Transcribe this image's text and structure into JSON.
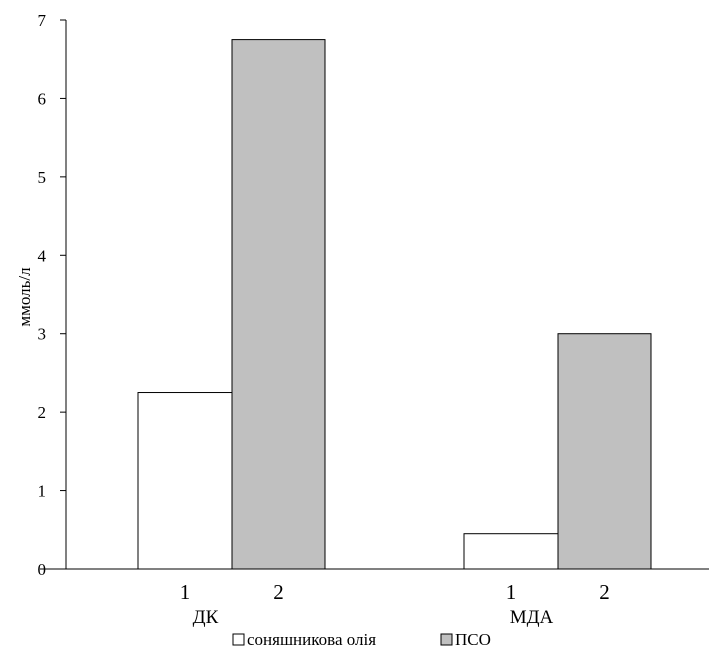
{
  "chart_data": {
    "type": "bar",
    "title": "",
    "xlabel": "",
    "ylabel": "ммоль/л",
    "ylim": [
      0,
      7
    ],
    "yticks": [
      "0",
      "1",
      "2",
      "3",
      "4",
      "5",
      "6",
      "7"
    ],
    "categories": [
      "ДК",
      "МДА"
    ],
    "bar_labels": [
      "1",
      "2"
    ],
    "series": [
      {
        "name": "соняшникова олія",
        "values": [
          2.25,
          0.45
        ],
        "color": "#ffffff"
      },
      {
        "name": "ПСО",
        "values": [
          6.75,
          3.0
        ],
        "color": "#c0c0c0"
      }
    ],
    "grid": false,
    "legend": "bottom"
  }
}
